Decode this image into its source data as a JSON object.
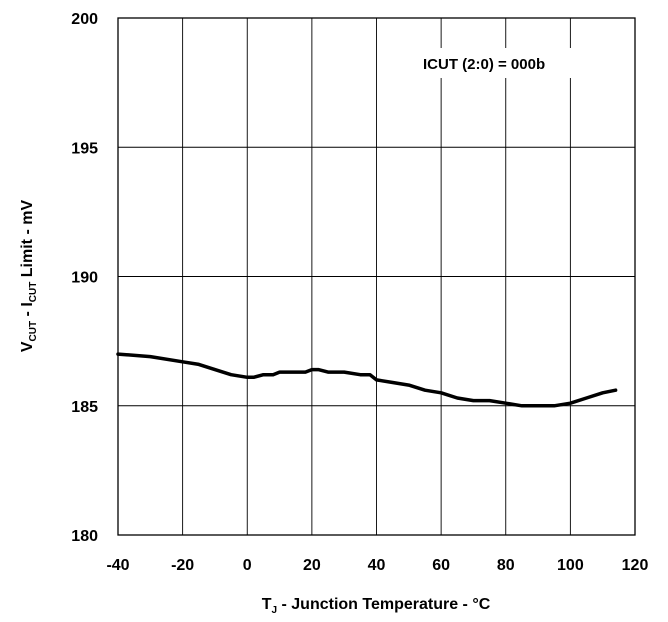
{
  "chart_data": {
    "type": "line",
    "annotation": "ICUT (2:0) = 000b",
    "xlabel": {
      "main": "T",
      "sub": "J",
      "rest": " - Junction Temperature - °C"
    },
    "ylabel": {
      "p1": "V",
      "p1_sub": "CUT",
      "p2": " - I",
      "p2_sub": "CUT",
      "p3": " Limit - mV"
    },
    "xlim": [
      -40,
      120
    ],
    "ylim": [
      180,
      200
    ],
    "xticks": [
      "-40",
      "-20",
      "0",
      "20",
      "40",
      "60",
      "80",
      "100",
      "120"
    ],
    "yticks": [
      "180",
      "185",
      "190",
      "195",
      "200"
    ],
    "grid": true,
    "series": [
      {
        "x": [
          -40,
          -30,
          -20,
          -15,
          -10,
          -5,
          0,
          2,
          5,
          8,
          10,
          15,
          18,
          20,
          22,
          25,
          30,
          35,
          38,
          40,
          45,
          50,
          55,
          60,
          65,
          70,
          75,
          80,
          85,
          90,
          95,
          100,
          105,
          110,
          114
        ],
        "y": [
          187.0,
          186.9,
          186.7,
          186.6,
          186.4,
          186.2,
          186.1,
          186.1,
          186.2,
          186.2,
          186.3,
          186.3,
          186.3,
          186.4,
          186.4,
          186.3,
          186.3,
          186.2,
          186.2,
          186.0,
          185.9,
          185.8,
          185.6,
          185.5,
          185.3,
          185.2,
          185.2,
          185.1,
          185.0,
          185.0,
          185.0,
          185.1,
          185.3,
          185.5,
          185.6
        ]
      }
    ]
  }
}
